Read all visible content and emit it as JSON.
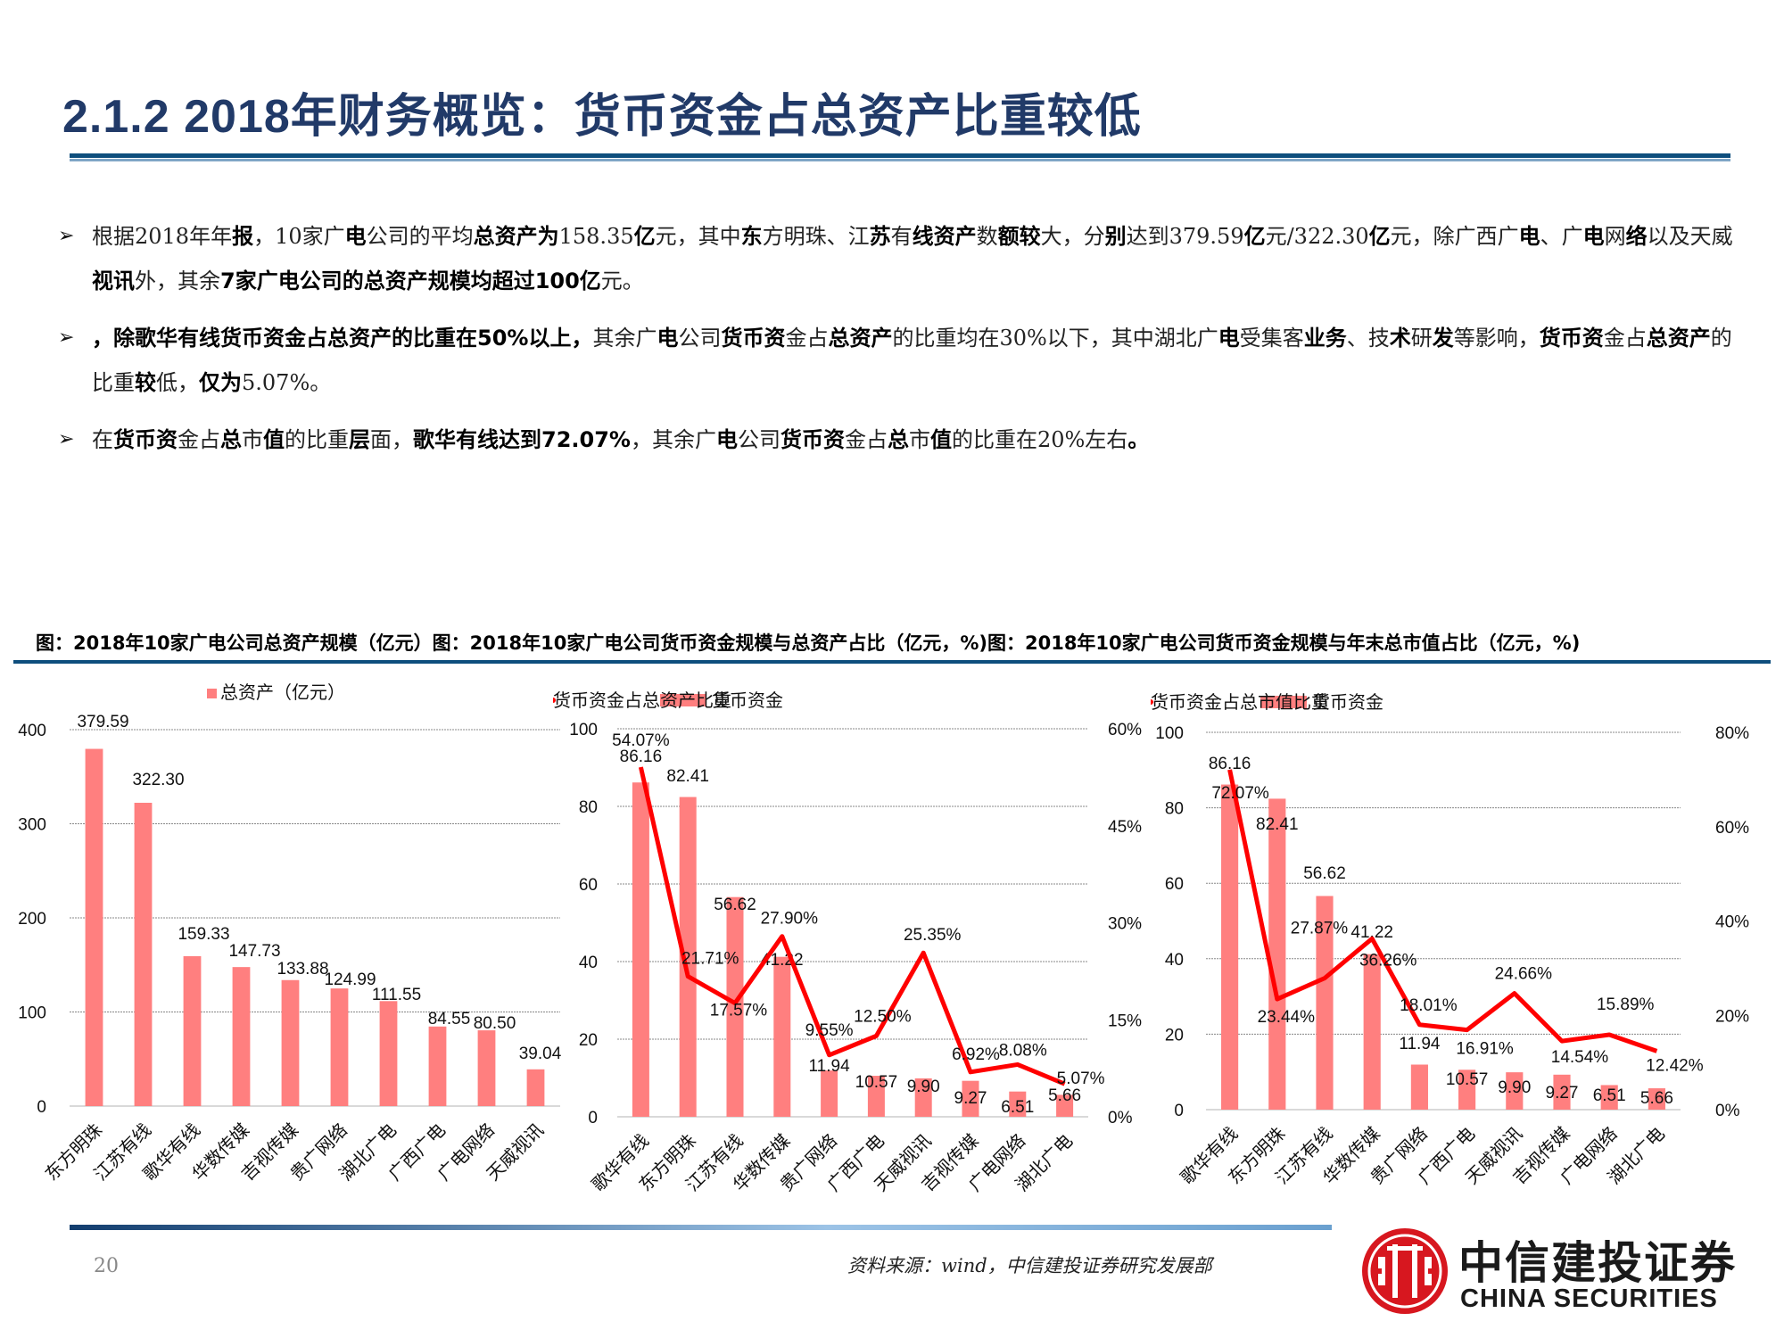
{
  "header": {
    "title": "2.1.2 2018年财务概览：货币资金占总资产比重较低"
  },
  "bullets": [
    {
      "icon": "arrow-bullet-icon",
      "segments": [
        {
          "text": "根据2018年年",
          "bold": false
        },
        {
          "text": "报",
          "bold": true
        },
        {
          "text": "，10家广",
          "bold": false
        },
        {
          "text": "电",
          "bold": true
        },
        {
          "text": "公司的平均",
          "bold": false
        },
        {
          "text": "总资产为",
          "bold": true
        },
        {
          "text": "158.35",
          "bold": false
        },
        {
          "text": "亿",
          "bold": true
        },
        {
          "text": "元，其中",
          "bold": false
        },
        {
          "text": "东",
          "bold": true
        },
        {
          "text": "方明珠、江",
          "bold": false
        },
        {
          "text": "苏",
          "bold": true
        },
        {
          "text": "有",
          "bold": false
        },
        {
          "text": "线资产",
          "bold": true
        },
        {
          "text": "数",
          "bold": false
        },
        {
          "text": "额较",
          "bold": true
        },
        {
          "text": "大，分",
          "bold": false
        },
        {
          "text": "别",
          "bold": true
        },
        {
          "text": "达到379.59",
          "bold": false
        },
        {
          "text": "亿",
          "bold": true
        },
        {
          "text": "元/322.30",
          "bold": false
        },
        {
          "text": "亿",
          "bold": true
        },
        {
          "text": "元，除广西广",
          "bold": false
        },
        {
          "text": "电",
          "bold": true
        },
        {
          "text": "、广",
          "bold": false
        },
        {
          "text": "电",
          "bold": true
        },
        {
          "text": "网",
          "bold": false
        },
        {
          "text": "络",
          "bold": true
        },
        {
          "text": "以及天威",
          "bold": false
        },
        {
          "text": "视讯",
          "bold": true
        },
        {
          "text": "外，其余",
          "bold": false
        },
        {
          "text": "7家广电公司的总资产规模均超过100亿",
          "bold": true
        },
        {
          "text": "元。",
          "bold": false
        }
      ]
    },
    {
      "icon": "arrow-bullet-icon",
      "segments": [
        {
          "text": "，除歌华有线货币资金占总资产的比重在50%以上，",
          "bold": true
        },
        {
          "text": "其余广",
          "bold": false
        },
        {
          "text": "电",
          "bold": true
        },
        {
          "text": "公司",
          "bold": false
        },
        {
          "text": "货币资",
          "bold": true
        },
        {
          "text": "金占",
          "bold": false
        },
        {
          "text": "总资产",
          "bold": true
        },
        {
          "text": "的比重均在30%以下，其中湖北广",
          "bold": false
        },
        {
          "text": "电",
          "bold": true
        },
        {
          "text": "受集客",
          "bold": false
        },
        {
          "text": "业务",
          "bold": true
        },
        {
          "text": "、技",
          "bold": false
        },
        {
          "text": "术",
          "bold": true
        },
        {
          "text": "研",
          "bold": false
        },
        {
          "text": "发",
          "bold": true
        },
        {
          "text": "等影响，",
          "bold": false
        },
        {
          "text": "货币资",
          "bold": true
        },
        {
          "text": "金占",
          "bold": false
        },
        {
          "text": "总资产",
          "bold": true
        },
        {
          "text": "的比重",
          "bold": false
        },
        {
          "text": "较",
          "bold": true
        },
        {
          "text": "低，",
          "bold": false
        },
        {
          "text": "仅为",
          "bold": true
        },
        {
          "text": "5.07%。",
          "bold": false
        }
      ]
    },
    {
      "icon": "arrow-bullet-icon",
      "segments": [
        {
          "text": "在",
          "bold": false
        },
        {
          "text": "货币资",
          "bold": true
        },
        {
          "text": "金占",
          "bold": false
        },
        {
          "text": "总",
          "bold": true
        },
        {
          "text": "市",
          "bold": false
        },
        {
          "text": "值",
          "bold": true
        },
        {
          "text": "的比重",
          "bold": false
        },
        {
          "text": "层",
          "bold": true
        },
        {
          "text": "面，",
          "bold": false
        },
        {
          "text": "歌华有线达到72.07%",
          "bold": true
        },
        {
          "text": "，其余广",
          "bold": false
        },
        {
          "text": "电",
          "bold": true
        },
        {
          "text": "公司",
          "bold": false
        },
        {
          "text": "货币资",
          "bold": true
        },
        {
          "text": "金占",
          "bold": false
        },
        {
          "text": "总",
          "bold": true
        },
        {
          "text": "市",
          "bold": false
        },
        {
          "text": "值",
          "bold": true
        },
        {
          "text": "的比重在20%左右",
          "bold": false
        },
        {
          "text": "。",
          "bold": true
        }
      ]
    }
  ],
  "captions": [
    "图：2018年10家广电公司总资产规模（亿元）",
    "图：2018年10家广电公司货币资金规模与总资产占比（亿元，%)",
    "图：2018年10家广电公司货币资金规模与年末总市值占比（亿元，%)"
  ],
  "colors": {
    "title": "#213a68",
    "bar": "#ff7f7f",
    "line": "#ff0000",
    "rule": "#0e4e7d",
    "logo_red": "#d7171f"
  },
  "chart_data": [
    {
      "type": "bar",
      "title": "图：2018年10家广电公司总资产规模（亿元）",
      "legend": [
        "总资产（亿元）"
      ],
      "legend_position": "top",
      "categories": [
        "东方明珠",
        "江苏有线",
        "歌华有线",
        "华数传媒",
        "吉视传媒",
        "贵广网络",
        "湖北广电",
        "广西广电",
        "广电网络",
        "天威视讯"
      ],
      "values": [
        379.59,
        322.3,
        159.33,
        147.73,
        133.88,
        124.99,
        111.55,
        84.55,
        80.5,
        39.04
      ],
      "value_labels": [
        "379.59",
        "322.30",
        "159.33",
        "147.73",
        "133.88",
        "124.99",
        "111.55",
        "84.55",
        "80.50",
        "39.04"
      ],
      "yticks": [
        "0",
        "100",
        "200",
        "300",
        "400"
      ],
      "ylim": [
        0,
        400
      ],
      "grid": true,
      "xlabel": "",
      "ylabel": ""
    },
    {
      "type": "bar+line",
      "title": "图：2018年10家广电公司货币资金规模与总资产占比（亿元，%)",
      "legend": [
        "货币资金",
        "货币资金占总资产比重"
      ],
      "legend_position": "top",
      "categories": [
        "歌华有线",
        "东方明珠",
        "江苏有线",
        "华数传媒",
        "贵广网络",
        "广西广电",
        "天威视讯",
        "吉视传媒",
        "广电网络",
        "湖北广电"
      ],
      "series": [
        {
          "name": "货币资金",
          "type": "bar",
          "axis": "left",
          "values": [
            86.16,
            82.41,
            56.62,
            41.22,
            11.94,
            10.57,
            9.9,
            9.27,
            6.51,
            5.66
          ],
          "labels": [
            "86.16",
            "82.41",
            "56.62",
            "41.22",
            "11.94",
            "10.57",
            "9.90",
            "9.27",
            "6.51",
            "5.66"
          ]
        },
        {
          "name": "货币资金占总资产比重",
          "type": "line",
          "axis": "right",
          "values": [
            54.07,
            21.71,
            17.57,
            27.9,
            9.55,
            12.5,
            25.35,
            6.92,
            8.08,
            5.07
          ],
          "labels": [
            "54.07%",
            "21.71%",
            "17.57%",
            "27.90%",
            "9.55%",
            "12.50%",
            "25.35%",
            "6.92%",
            "8.08%",
            "5.07%"
          ]
        }
      ],
      "yticks_left": [
        "0",
        "20",
        "40",
        "60",
        "80",
        "100"
      ],
      "yticks_right": [
        "0%",
        "15%",
        "30%",
        "45%",
        "60%"
      ],
      "ylim_left": [
        0,
        100
      ],
      "ylim_right": [
        0,
        60
      ],
      "grid": true
    },
    {
      "type": "bar+line",
      "title": "图：2018年10家广电公司货币资金规模与年末总市值占比（亿元，%)",
      "legend": [
        "货币资金",
        "货币资金占总市值比重"
      ],
      "legend_position": "top",
      "categories": [
        "歌华有线",
        "东方明珠",
        "江苏有线",
        "华数传媒",
        "贵广网络",
        "广西广电",
        "天威视讯",
        "吉视传媒",
        "广电网络",
        "湖北广电"
      ],
      "series": [
        {
          "name": "货币资金",
          "type": "bar",
          "axis": "left",
          "values": [
            86.16,
            82.41,
            56.62,
            41.22,
            11.94,
            10.57,
            9.9,
            9.27,
            6.51,
            5.66
          ],
          "labels": [
            "86.16",
            "82.41",
            "56.62",
            "41.22",
            "11.94",
            "10.57",
            "9.90",
            "9.27",
            "6.51",
            "5.66"
          ]
        },
        {
          "name": "货币资金占总市值比重",
          "type": "line",
          "axis": "right",
          "values": [
            72.07,
            23.44,
            27.87,
            36.26,
            18.01,
            16.91,
            24.66,
            14.54,
            15.89,
            12.42
          ],
          "labels": [
            "72.07%",
            "23.44%",
            "27.87%",
            "36.26%",
            "18.01%",
            "16.91%",
            "24.66%",
            "14.54%",
            "15.89%",
            "12.42%"
          ]
        }
      ],
      "yticks_left": [
        "0",
        "20",
        "40",
        "60",
        "80",
        "100"
      ],
      "yticks_right": [
        "0%",
        "20%",
        "40%",
        "60%",
        "80%"
      ],
      "ylim_left": [
        0,
        100
      ],
      "ylim_right": [
        0,
        80
      ],
      "grid": true
    }
  ],
  "footer": {
    "page_number": "20",
    "source": "资料来源：wind，中信建投证券研究发展部",
    "logo_cn": "中信建投证券",
    "logo_en": "CHINA SECURITIES",
    "logo_icon": "citic-logo-icon"
  }
}
